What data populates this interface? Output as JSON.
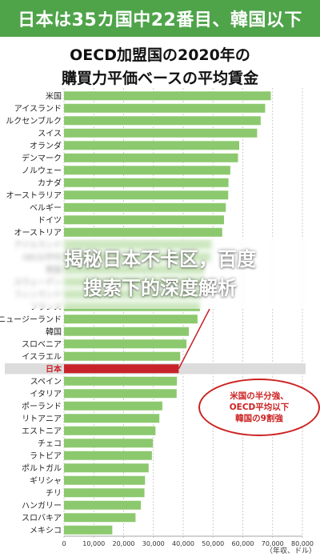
{
  "banner": {
    "text": "日本は35カ国中22番目、韓国以下",
    "bg_color": "#4fa44a"
  },
  "overlay": {
    "line1": "揭秘日本不卡区，百度",
    "line2": "搜索下的深度解析"
  },
  "callout": {
    "line1": "米国の半分強、",
    "line2": "OECD平均以下",
    "line3": "韓国の9割強"
  },
  "colors": {
    "bar": "#8cc96e",
    "highlight": "#c8232a",
    "grid": "#bfbfbf",
    "highlight_row": "#dcdcdc"
  },
  "chart_data": {
    "type": "bar",
    "orientation": "horizontal",
    "title": "OECD加盟国の2020年の",
    "subtitle": "購買力平価ベースの平均賃金",
    "unit_label": "（年収、ドル）",
    "xlim": [
      0,
      80000
    ],
    "xticks": [
      "0",
      "10,000",
      "20,000",
      "30,000",
      "40,000",
      "50,000",
      "60,000",
      "70,000",
      "80,000"
    ],
    "highlight": "日本",
    "categories": [
      "米国",
      "アイスランド",
      "ルクセンブルク",
      "スイス",
      "オランダ",
      "デンマーク",
      "ノルウェー",
      "カナダ",
      "オーストラリア",
      "ベルギー",
      "ドイツ",
      "オーストリア",
      "アイルランド",
      "OECD平均",
      "英国",
      "スウェーデン",
      "フィンランド",
      "フランス",
      "ニュージーランド",
      "韓国",
      "スロベニア",
      "イスラエル",
      "日本",
      "スペイン",
      "イタリア",
      "ポーランド",
      "リトアニア",
      "エストニア",
      "チェコ",
      "ラトビア",
      "ポルトガル",
      "ギリシャ",
      "チリ",
      "ハンガリー",
      "スロバキア",
      "メキシコ"
    ],
    "values": [
      69400,
      67500,
      66000,
      64800,
      58800,
      58400,
      55800,
      55200,
      55100,
      54300,
      53700,
      53100,
      49500,
      49200,
      47100,
      47000,
      46200,
      45600,
      44800,
      41900,
      41100,
      39000,
      38500,
      37900,
      37800,
      33000,
      32000,
      30700,
      29800,
      29500,
      28400,
      27200,
      27000,
      25800,
      24000,
      16200
    ]
  }
}
